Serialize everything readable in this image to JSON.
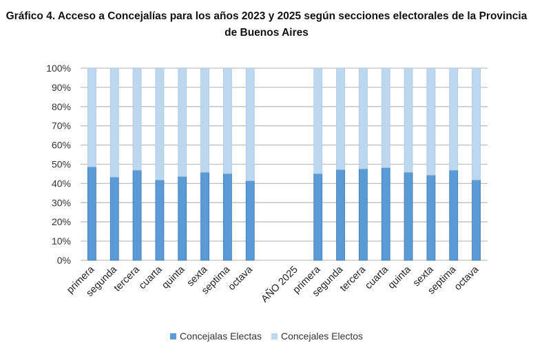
{
  "title": "Gráfico 4. Acceso a Concejalías para los años 2023 y 2025 según secciones electorales de la Provincia de Buenos Aires",
  "chart_data": {
    "type": "bar",
    "stacked": true,
    "percent_stacked": true,
    "title": "Gráfico 4. Acceso a Concejalías para los años 2023 y 2025 según secciones electorales de la Provincia de Buenos Aires",
    "categories": [
      "primera",
      "segunda",
      "tercera",
      "cuarta",
      "quinta",
      "sexta",
      "septima",
      "octava",
      "",
      "AÑO 2025",
      "primera",
      "segunda",
      "tercera",
      "cuarta",
      "quinta",
      "sexta",
      "septima",
      "octava"
    ],
    "series": [
      {
        "name": "Concejalas Electas",
        "color": "#5B9BD5",
        "values": [
          48.6,
          43.3,
          46.9,
          41.8,
          43.6,
          45.8,
          45.1,
          41.4,
          null,
          null,
          45.1,
          47.2,
          47.6,
          48.2,
          45.8,
          44.3,
          46.9,
          41.8
        ]
      },
      {
        "name": "Concejales Electos",
        "color": "#BDD7EE",
        "values": [
          51.4,
          56.7,
          53.1,
          58.2,
          56.4,
          54.2,
          54.9,
          58.6,
          null,
          null,
          54.9,
          52.8,
          52.4,
          51.8,
          54.2,
          55.7,
          53.1,
          58.2
        ]
      }
    ],
    "yticks": [
      "0%",
      "10%",
      "20%",
      "30%",
      "40%",
      "50%",
      "60%",
      "70%",
      "80%",
      "90%",
      "100%"
    ],
    "ylim": [
      0,
      100
    ],
    "grid": true,
    "legend": "bottom",
    "xlabel": "",
    "ylabel": ""
  }
}
